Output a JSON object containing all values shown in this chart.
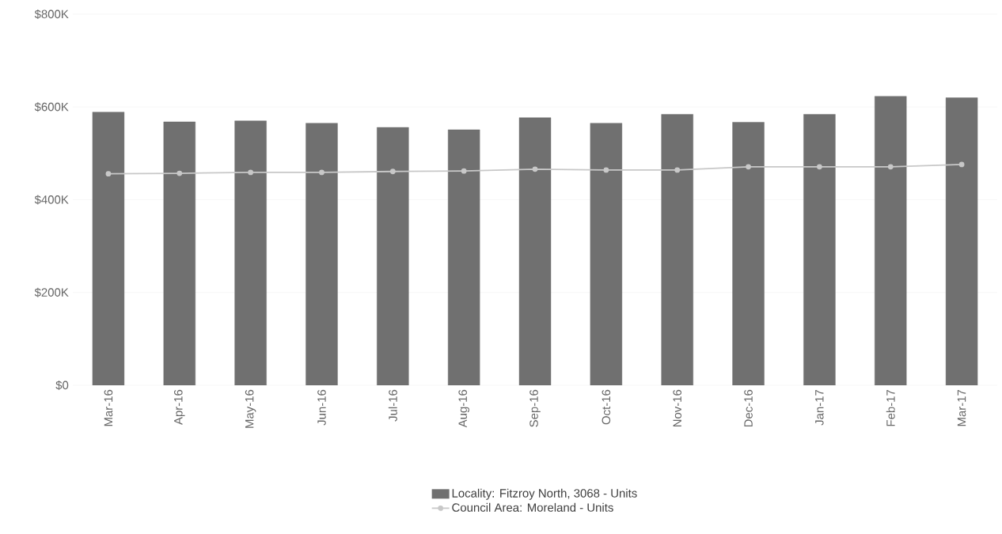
{
  "chart_data": {
    "type": "bar",
    "categories": [
      "Mar-16",
      "Apr-16",
      "May-16",
      "Jun-16",
      "Jul-16",
      "Aug-16",
      "Sep-16",
      "Oct-16",
      "Nov-16",
      "Dec-16",
      "Jan-17",
      "Feb-17",
      "Mar-17"
    ],
    "series": [
      {
        "name": "Locality: Fitzroy North, 3068 - Units",
        "color": "#707070",
        "values": [
          589,
          568,
          570,
          565,
          556,
          551,
          577,
          565,
          584,
          567,
          584,
          623,
          620
        ]
      },
      {
        "name": "Council Area: Moreland - Units",
        "type": "line",
        "color": "#c8c8c8",
        "marker": "circle",
        "values": [
          456,
          457,
          459,
          459,
          461,
          462,
          466,
          464,
          464,
          471,
          471,
          471,
          476
        ]
      }
    ],
    "ylim": [
      0,
      800
    ],
    "yticks": [
      {
        "value": 0,
        "label": "$0"
      },
      {
        "value": 200,
        "label": "$200K"
      },
      {
        "value": 400,
        "label": "$400K"
      },
      {
        "value": 600,
        "label": "$600K"
      },
      {
        "value": 800,
        "label": "$800K"
      }
    ],
    "grid": "y",
    "legend": "bottom"
  }
}
